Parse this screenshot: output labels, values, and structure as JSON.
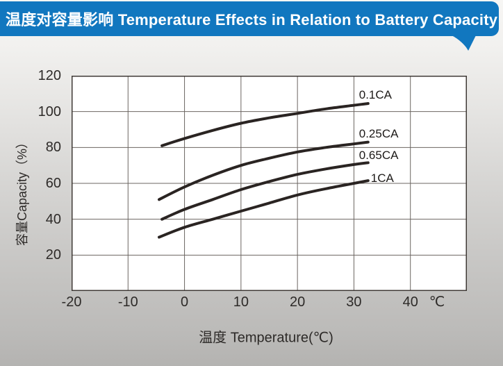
{
  "banner": {
    "title": "温度对容量影响 Temperature Effects in Relation to Battery Capacity",
    "bg_color": "#1177bf",
    "text_color": "#ffffff"
  },
  "chart_data": {
    "type": "line",
    "title": "温度对容量影响 Temperature Effects in Relation to Battery Capacity",
    "xlabel": "温度  Temperature(℃)",
    "ylabel": "容量Capacity（%）",
    "x_unit": "℃",
    "xlim": [
      -20,
      50
    ],
    "ylim": [
      0,
      120
    ],
    "xticks": [
      "-20",
      "-10",
      "0",
      "10",
      "20",
      "30",
      "40"
    ],
    "xtick_values": [
      -20,
      -10,
      0,
      10,
      20,
      30,
      40
    ],
    "yticks": [
      "120",
      "100",
      "80",
      "60",
      "40",
      "20"
    ],
    "ytick_values": [
      120,
      100,
      80,
      60,
      40,
      20
    ],
    "grid": true,
    "x_grid_step": 10,
    "y_grid_step": 20,
    "grid_color": "#6b6561",
    "border_color": "#3f3a36",
    "plot_bg": "#ffffff",
    "line_color": "#2a2422",
    "line_width": 4,
    "legend_position": "labels-at-line-ends",
    "series": [
      {
        "name": "0.1CA",
        "points": [
          [
            -4,
            81
          ],
          [
            0,
            85
          ],
          [
            5,
            89.5
          ],
          [
            10,
            93.5
          ],
          [
            15,
            96.5
          ],
          [
            20,
            99
          ],
          [
            25,
            101.5
          ],
          [
            30,
            103.5
          ],
          [
            32.5,
            104.5
          ]
        ],
        "label_offset": [
          -13,
          -22
        ]
      },
      {
        "name": "0.25CA",
        "points": [
          [
            -4.5,
            51
          ],
          [
            0,
            58
          ],
          [
            5,
            64.5
          ],
          [
            10,
            70
          ],
          [
            15,
            74
          ],
          [
            20,
            77.5
          ],
          [
            25,
            80
          ],
          [
            30,
            82
          ],
          [
            32.5,
            83
          ]
        ],
        "label_offset": [
          -13,
          -22
        ]
      },
      {
        "name": "0.65CA",
        "points": [
          [
            -4,
            40
          ],
          [
            0,
            45.5
          ],
          [
            5,
            51
          ],
          [
            10,
            56.5
          ],
          [
            15,
            61
          ],
          [
            20,
            65
          ],
          [
            25,
            68
          ],
          [
            30,
            70.5
          ],
          [
            32.5,
            71.5
          ]
        ],
        "label_offset": [
          -13,
          -20
        ]
      },
      {
        "name": "1CA",
        "points": [
          [
            -4.5,
            30
          ],
          [
            0,
            35.5
          ],
          [
            5,
            40
          ],
          [
            10,
            44.5
          ],
          [
            15,
            49
          ],
          [
            20,
            53.5
          ],
          [
            25,
            57
          ],
          [
            30,
            60
          ],
          [
            32.5,
            61.5
          ]
        ],
        "label_offset": [
          4,
          -13
        ]
      }
    ]
  }
}
